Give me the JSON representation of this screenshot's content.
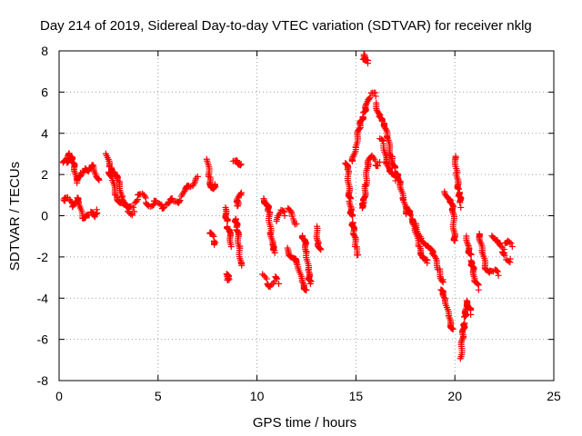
{
  "chart_data": {
    "type": "scatter",
    "title": "Day 214 of 2019, Sidereal Day-to-day VTEC variation (SDTVAR) for receiver nklg",
    "xlabel": "GPS time / hours",
    "ylabel": "SDTVAR / TECUs",
    "xlim": [
      0,
      25
    ],
    "ylim": [
      -8,
      8
    ],
    "x_ticks": [
      0,
      5,
      10,
      15,
      20,
      25
    ],
    "x_tick_labels": [
      "0",
      "5",
      "10",
      "15",
      "20",
      "25"
    ],
    "y_ticks": [
      -8,
      -6,
      -4,
      -2,
      0,
      2,
      4,
      6,
      8
    ],
    "y_tick_labels": [
      "-8",
      "-6",
      "-4",
      "-2",
      "0",
      "2",
      "4",
      "6",
      "8"
    ],
    "grid": true,
    "marker": "+",
    "marker_color": "#ff0000",
    "series": [
      {
        "name": "SDTVAR",
        "segments": [
          [
            [
              0.2,
              2.4
            ],
            [
              0.4,
              2.6
            ],
            [
              0.5,
              3.2
            ],
            [
              0.7,
              2.5
            ],
            [
              0.9,
              1.6
            ],
            [
              1.1,
              2.2
            ],
            [
              1.3,
              2.4
            ],
            [
              1.5,
              2.0
            ],
            [
              1.7,
              2.4
            ],
            [
              1.9,
              2.1
            ],
            [
              2.0,
              1.8
            ]
          ],
          [
            [
              0.2,
              0.9
            ],
            [
              0.3,
              0.7
            ],
            [
              0.5,
              0.7
            ],
            [
              0.7,
              0.6
            ],
            [
              0.9,
              0.9
            ],
            [
              1.0,
              0.5
            ],
            [
              1.2,
              -0.1
            ],
            [
              1.4,
              0.2
            ],
            [
              1.6,
              0.1
            ],
            [
              1.8,
              -0.2
            ],
            [
              1.9,
              0.3
            ]
          ],
          [
            [
              2.4,
              3.0
            ],
            [
              2.6,
              2.5
            ],
            [
              2.8,
              2.0
            ],
            [
              3.0,
              1.5
            ],
            [
              3.2,
              1.0
            ],
            [
              3.4,
              0.6
            ],
            [
              3.6,
              0.3
            ],
            [
              3.8,
              0.2
            ]
          ],
          [
            [
              2.5,
              2.0
            ],
            [
              2.7,
              1.6
            ],
            [
              2.9,
              1.1
            ],
            [
              3.1,
              0.7
            ],
            [
              3.3,
              0.4
            ],
            [
              3.5,
              0.2
            ],
            [
              3.7,
              0.1
            ]
          ],
          [
            [
              3.8,
              0.8
            ],
            [
              4.0,
              1.0
            ],
            [
              4.2,
              0.9
            ],
            [
              4.4,
              0.7
            ],
            [
              4.6,
              0.6
            ],
            [
              4.8,
              0.6
            ],
            [
              5.0,
              0.5
            ],
            [
              5.2,
              0.5
            ],
            [
              5.4,
              0.6
            ],
            [
              5.6,
              0.6
            ],
            [
              5.8,
              0.7
            ],
            [
              6.0,
              0.8
            ],
            [
              6.2,
              0.9
            ],
            [
              6.4,
              1.2
            ],
            [
              6.6,
              1.5
            ],
            [
              6.8,
              1.7
            ],
            [
              7.0,
              1.9
            ]
          ],
          [
            [
              7.5,
              2.6
            ],
            [
              7.6,
              2.0
            ],
            [
              7.7,
              1.5
            ],
            [
              7.8,
              1.2
            ],
            [
              7.9,
              1.4
            ]
          ],
          [
            [
              7.6,
              -0.8
            ],
            [
              7.7,
              -1.0
            ],
            [
              7.8,
              -1.2
            ],
            [
              7.9,
              -1.3
            ]
          ],
          [
            [
              8.4,
              0.5
            ],
            [
              8.5,
              -0.4
            ],
            [
              8.6,
              -0.9
            ],
            [
              8.7,
              -1.5
            ]
          ],
          [
            [
              8.5,
              -3.0
            ],
            [
              8.6,
              -3.1
            ]
          ],
          [
            [
              8.9,
              0.0
            ],
            [
              9.0,
              -0.8
            ],
            [
              9.1,
              -1.6
            ],
            [
              9.2,
              -2.3
            ]
          ],
          [
            [
              8.8,
              2.6
            ],
            [
              9.0,
              2.8
            ],
            [
              9.2,
              2.5
            ]
          ],
          [
            [
              9.0,
              0.6
            ],
            [
              9.2,
              1.0
            ]
          ],
          [
            [
              10.3,
              1.0
            ],
            [
              10.5,
              0.6
            ],
            [
              10.6,
              0.0
            ],
            [
              10.7,
              -0.8
            ],
            [
              10.8,
              -1.3
            ],
            [
              10.9,
              -1.8
            ]
          ],
          [
            [
              10.3,
              -3.0
            ],
            [
              10.5,
              -3.2
            ],
            [
              10.7,
              -3.3
            ],
            [
              10.9,
              -3.1
            ],
            [
              11.1,
              -3.3
            ]
          ],
          [
            [
              11.0,
              -0.2
            ],
            [
              11.2,
              0.1
            ],
            [
              11.4,
              0.0
            ]
          ],
          [
            [
              11.5,
              -1.5
            ],
            [
              11.7,
              -1.8
            ],
            [
              11.9,
              -2.2
            ],
            [
              12.1,
              -2.6
            ],
            [
              12.3,
              -3.1
            ],
            [
              12.5,
              -3.6
            ]
          ],
          [
            [
              11.6,
              0.2
            ],
            [
              11.8,
              -0.2
            ],
            [
              12.0,
              -0.4
            ]
          ],
          [
            [
              12.3,
              -0.8
            ],
            [
              12.4,
              -1.3
            ],
            [
              12.5,
              -1.9
            ],
            [
              12.6,
              -2.5
            ],
            [
              12.7,
              -3.3
            ]
          ],
          [
            [
              13.0,
              -0.6
            ],
            [
              13.1,
              -1.2
            ],
            [
              13.2,
              -1.6
            ]
          ],
          [
            [
              14.5,
              2.5
            ],
            [
              14.6,
              2.0
            ],
            [
              14.7,
              0.8
            ],
            [
              14.8,
              -0.2
            ],
            [
              14.9,
              -1.0
            ],
            [
              15.0,
              -1.6
            ],
            [
              15.1,
              -1.9
            ]
          ],
          [
            [
              14.8,
              2.8
            ],
            [
              15.0,
              3.4
            ],
            [
              15.2,
              4.2
            ],
            [
              15.4,
              5.0
            ],
            [
              15.6,
              5.8
            ],
            [
              15.8,
              5.9
            ],
            [
              16.0,
              5.8
            ]
          ],
          [
            [
              15.3,
              0.2
            ],
            [
              15.4,
              0.8
            ],
            [
              15.5,
              1.6
            ],
            [
              15.6,
              2.4
            ],
            [
              15.8,
              2.8
            ],
            [
              16.0,
              2.6
            ],
            [
              16.2,
              2.6
            ]
          ],
          [
            [
              15.4,
              7.7
            ],
            [
              15.6,
              7.4
            ]
          ],
          [
            [
              16.0,
              5.5
            ],
            [
              16.2,
              5.0
            ],
            [
              16.4,
              4.4
            ],
            [
              16.6,
              3.7
            ],
            [
              16.8,
              3.0
            ],
            [
              17.0,
              2.2
            ],
            [
              17.2,
              1.5
            ],
            [
              17.4,
              0.8
            ],
            [
              17.6,
              0.2
            ]
          ],
          [
            [
              16.2,
              3.6
            ],
            [
              16.4,
              3.4
            ],
            [
              16.6,
              2.6
            ],
            [
              16.8,
              2.1
            ],
            [
              17.0,
              1.7
            ]
          ],
          [
            [
              17.6,
              0.6
            ],
            [
              17.8,
              -0.2
            ],
            [
              18.0,
              -0.8
            ],
            [
              18.2,
              -1.4
            ],
            [
              18.4,
              -1.9
            ],
            [
              18.6,
              -2.3
            ]
          ],
          [
            [
              18.0,
              -0.5
            ],
            [
              18.3,
              -1.0
            ],
            [
              18.6,
              -1.4
            ],
            [
              18.9,
              -2.0
            ],
            [
              19.2,
              -2.6
            ],
            [
              19.4,
              -3.1
            ]
          ],
          [
            [
              19.3,
              -3.6
            ],
            [
              19.5,
              -4.2
            ],
            [
              19.7,
              -4.8
            ],
            [
              19.9,
              -5.5
            ]
          ],
          [
            [
              19.5,
              1.3
            ],
            [
              19.7,
              0.9
            ],
            [
              19.9,
              0.2
            ],
            [
              20.0,
              -1.2
            ]
          ],
          [
            [
              20.0,
              2.7
            ],
            [
              20.1,
              2.1
            ],
            [
              20.2,
              1.3
            ],
            [
              20.3,
              0.4
            ]
          ],
          [
            [
              20.3,
              -6.8
            ],
            [
              20.4,
              -6.0
            ],
            [
              20.5,
              -5.0
            ],
            [
              20.6,
              -4.0
            ],
            [
              20.7,
              -4.4
            ],
            [
              20.8,
              -4.8
            ]
          ],
          [
            [
              20.6,
              -1.0
            ],
            [
              20.8,
              -2.0
            ],
            [
              21.0,
              -3.2
            ],
            [
              21.2,
              -3.6
            ]
          ],
          [
            [
              21.2,
              -1.0
            ],
            [
              21.4,
              -1.8
            ],
            [
              21.6,
              -2.5
            ],
            [
              21.8,
              -2.6
            ],
            [
              22.0,
              -2.8
            ],
            [
              22.2,
              -2.9
            ]
          ],
          [
            [
              21.9,
              -0.8
            ],
            [
              22.1,
              -1.2
            ],
            [
              22.3,
              -1.6
            ],
            [
              22.5,
              -1.8
            ]
          ],
          [
            [
              22.4,
              -1.9
            ],
            [
              22.6,
              -2.0
            ],
            [
              22.8,
              -2.1
            ]
          ],
          [
            [
              22.5,
              -1.3
            ],
            [
              22.7,
              -1.4
            ],
            [
              22.9,
              -1.5
            ]
          ]
        ]
      }
    ]
  }
}
